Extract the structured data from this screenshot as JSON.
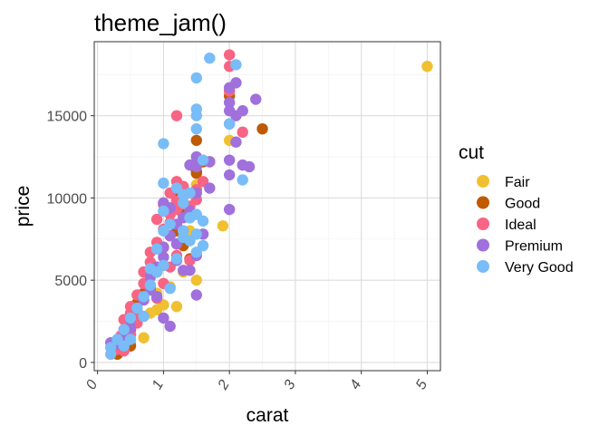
{
  "chart_data": {
    "type": "scatter",
    "title": "theme_jam()",
    "xlabel": "carat",
    "ylabel": "price",
    "xlim": [
      -0.05,
      5.2
    ],
    "ylim": [
      -500,
      19500
    ],
    "x_ticks": [
      "0",
      "1",
      "2",
      "3",
      "4",
      "5"
    ],
    "y_ticks": [
      "0",
      "5000",
      "10000",
      "15000"
    ],
    "grid": true,
    "legend_title": "cut",
    "legend_position": "right",
    "series": [
      {
        "name": "Fair",
        "color": "#F0C030",
        "points": [
          [
            5.0,
            18000
          ],
          [
            1.5,
            5000
          ],
          [
            1.9,
            8300
          ],
          [
            0.9,
            4200
          ],
          [
            1.0,
            3500
          ],
          [
            0.8,
            3000
          ],
          [
            1.2,
            3400
          ],
          [
            0.7,
            1500
          ],
          [
            0.5,
            1200
          ],
          [
            1.5,
            10800
          ],
          [
            1.4,
            8000
          ],
          [
            2.0,
            13500
          ],
          [
            1.1,
            4600
          ],
          [
            0.9,
            3200
          ],
          [
            1.3,
            5500
          ],
          [
            2.0,
            16500
          ]
        ]
      },
      {
        "name": "Good",
        "color": "#C05A00",
        "points": [
          [
            2.5,
            14200
          ],
          [
            1.5,
            13500
          ],
          [
            2.0,
            16200
          ],
          [
            1.6,
            12200
          ],
          [
            1.5,
            11500
          ],
          [
            1.3,
            9000
          ],
          [
            1.2,
            8000
          ],
          [
            1.0,
            7000
          ],
          [
            0.9,
            5500
          ],
          [
            0.7,
            4200
          ],
          [
            0.6,
            3600
          ],
          [
            0.5,
            2000
          ],
          [
            0.4,
            1200
          ],
          [
            0.3,
            500
          ],
          [
            1.1,
            7700
          ],
          [
            1.3,
            7100
          ],
          [
            1.4,
            8800
          ],
          [
            1.2,
            10000
          ],
          [
            1.5,
            11600
          ],
          [
            0.8,
            4500
          ],
          [
            0.6,
            2500
          ],
          [
            1.0,
            5900
          ],
          [
            0.5,
            1000
          ],
          [
            1.7,
            12200
          ],
          [
            1.4,
            6300
          ]
        ]
      },
      {
        "name": "Ideal",
        "color": "#F86484",
        "points": [
          [
            2.0,
            18700
          ],
          [
            2.0,
            18000
          ],
          [
            1.2,
            15000
          ],
          [
            2.0,
            16500
          ],
          [
            2.2,
            14000
          ],
          [
            1.6,
            11000
          ],
          [
            1.5,
            10500
          ],
          [
            1.3,
            10700
          ],
          [
            1.2,
            9800
          ],
          [
            1.2,
            9300
          ],
          [
            1.1,
            9000
          ],
          [
            1.1,
            8500
          ],
          [
            1.0,
            8100
          ],
          [
            0.9,
            7300
          ],
          [
            1.0,
            7000
          ],
          [
            0.8,
            6700
          ],
          [
            0.7,
            5500
          ],
          [
            0.8,
            5200
          ],
          [
            0.7,
            4800
          ],
          [
            0.6,
            4100
          ],
          [
            0.5,
            3400
          ],
          [
            0.5,
            3000
          ],
          [
            0.4,
            2600
          ],
          [
            0.4,
            2000
          ],
          [
            0.35,
            1600
          ],
          [
            0.3,
            1100
          ],
          [
            0.3,
            800
          ],
          [
            0.4,
            700
          ],
          [
            1.3,
            8000
          ],
          [
            1.4,
            9500
          ],
          [
            1.2,
            6500
          ],
          [
            1.0,
            4800
          ],
          [
            0.9,
            3900
          ],
          [
            1.1,
            5800
          ],
          [
            0.6,
            2400
          ],
          [
            0.5,
            1700
          ],
          [
            1.4,
            6200
          ],
          [
            1.3,
            10100
          ],
          [
            1.1,
            10300
          ],
          [
            1.0,
            9600
          ],
          [
            0.9,
            8700
          ],
          [
            1.5,
            9900
          ],
          [
            0.7,
            3800
          ],
          [
            0.8,
            6100
          ],
          [
            0.6,
            3100
          ],
          [
            0.5,
            2300
          ],
          [
            1.2,
            11000
          ]
        ]
      },
      {
        "name": "Premium",
        "color": "#A070DC",
        "points": [
          [
            2.0,
            16700
          ],
          [
            2.4,
            16000
          ],
          [
            2.0,
            15800
          ],
          [
            2.2,
            15300
          ],
          [
            2.1,
            15000
          ],
          [
            2.1,
            17000
          ],
          [
            2.0,
            14500
          ],
          [
            2.1,
            13400
          ],
          [
            2.2,
            12000
          ],
          [
            2.3,
            11900
          ],
          [
            2.0,
            12300
          ],
          [
            1.7,
            12200
          ],
          [
            2.0,
            11400
          ],
          [
            2.0,
            9300
          ],
          [
            1.7,
            10600
          ],
          [
            1.5,
            10300
          ],
          [
            1.4,
            9200
          ],
          [
            1.3,
            8800
          ],
          [
            1.2,
            8400
          ],
          [
            1.1,
            7700
          ],
          [
            1.0,
            7000
          ],
          [
            1.0,
            6400
          ],
          [
            0.9,
            5800
          ],
          [
            0.8,
            5200
          ],
          [
            0.8,
            4400
          ],
          [
            0.7,
            3800
          ],
          [
            0.6,
            3300
          ],
          [
            0.5,
            2600
          ],
          [
            0.5,
            2100
          ],
          [
            0.4,
            1500
          ],
          [
            0.3,
            1100
          ],
          [
            0.2,
            1200
          ],
          [
            1.5,
            4100
          ],
          [
            1.5,
            6500
          ],
          [
            1.6,
            7800
          ],
          [
            1.4,
            5600
          ],
          [
            1.1,
            2200
          ],
          [
            1.0,
            2700
          ],
          [
            0.9,
            4000
          ],
          [
            1.2,
            6200
          ],
          [
            1.3,
            5600
          ],
          [
            1.1,
            9400
          ],
          [
            1.0,
            9700
          ],
          [
            1.4,
            12000
          ],
          [
            1.5,
            12500
          ],
          [
            2.0,
            15300
          ],
          [
            1.5,
            11900
          ],
          [
            1.2,
            7200
          ]
        ]
      },
      {
        "name": "Very Good",
        "color": "#78BCF8",
        "points": [
          [
            1.7,
            18500
          ],
          [
            2.1,
            18100
          ],
          [
            1.5,
            17300
          ],
          [
            1.5,
            15400
          ],
          [
            1.5,
            15000
          ],
          [
            2.0,
            14500
          ],
          [
            1.5,
            14200
          ],
          [
            1.0,
            13300
          ],
          [
            2.2,
            11100
          ],
          [
            1.0,
            10900
          ],
          [
            1.3,
            10200
          ],
          [
            1.3,
            9700
          ],
          [
            1.5,
            9000
          ],
          [
            1.4,
            8800
          ],
          [
            1.6,
            8600
          ],
          [
            1.5,
            7800
          ],
          [
            1.3,
            7600
          ],
          [
            1.6,
            7100
          ],
          [
            1.5,
            6700
          ],
          [
            1.2,
            6300
          ],
          [
            1.0,
            5900
          ],
          [
            0.9,
            5500
          ],
          [
            0.8,
            4700
          ],
          [
            0.7,
            4000
          ],
          [
            0.6,
            3300
          ],
          [
            0.5,
            2700
          ],
          [
            0.4,
            2000
          ],
          [
            0.3,
            1400
          ],
          [
            0.2,
            900
          ],
          [
            0.2,
            500
          ],
          [
            0.4,
            1000
          ],
          [
            0.5,
            1400
          ],
          [
            1.0,
            9200
          ],
          [
            1.1,
            8400
          ],
          [
            1.2,
            10600
          ],
          [
            1.4,
            7400
          ],
          [
            1.3,
            8000
          ],
          [
            0.9,
            6900
          ],
          [
            0.8,
            5700
          ],
          [
            0.7,
            2800
          ],
          [
            1.1,
            4500
          ],
          [
            1.4,
            10300
          ],
          [
            1.6,
            12300
          ],
          [
            1.0,
            8000
          ]
        ]
      }
    ]
  }
}
